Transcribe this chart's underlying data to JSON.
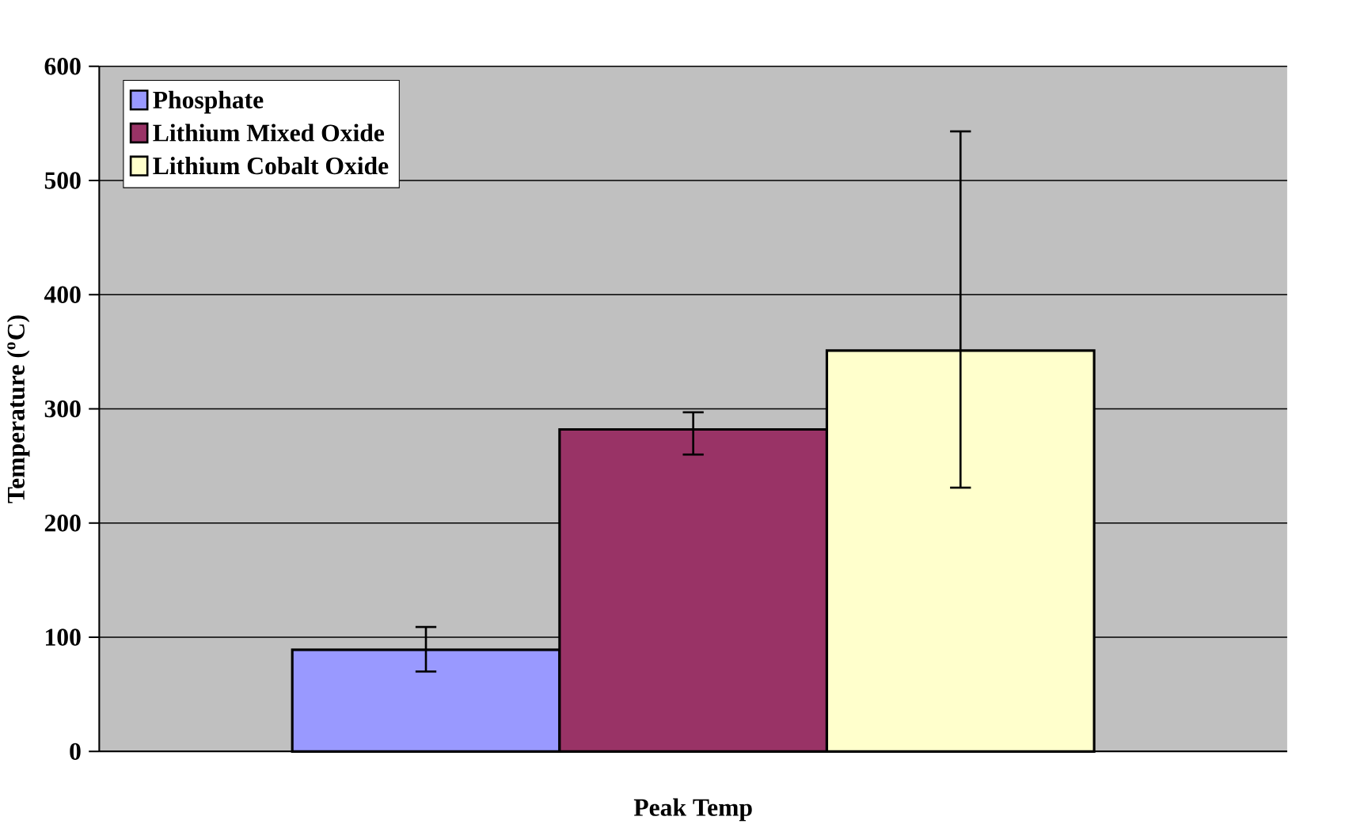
{
  "chart_data": {
    "type": "bar",
    "ylabel": "Temperature ($^{o}$C)",
    "categories": [
      "Peak Temp"
    ],
    "series": [
      {
        "name": "Phosphate",
        "color": "#9999ff",
        "values": [
          89
        ],
        "errors": [
          [
            70,
            109
          ]
        ]
      },
      {
        "name": "Lithium Mixed Oxide",
        "color": "#993366",
        "values": [
          282
        ],
        "errors": [
          [
            260,
            297
          ]
        ]
      },
      {
        "name": "Lithium Cobalt Oxide",
        "color": "#ffffcc",
        "values": [
          351
        ],
        "errors": [
          [
            231,
            543
          ]
        ]
      }
    ],
    "ylim": [
      0,
      600
    ],
    "yticks": [
      0,
      100,
      200,
      300,
      400,
      500,
      600
    ],
    "grid": "y",
    "legend": "top left"
  }
}
